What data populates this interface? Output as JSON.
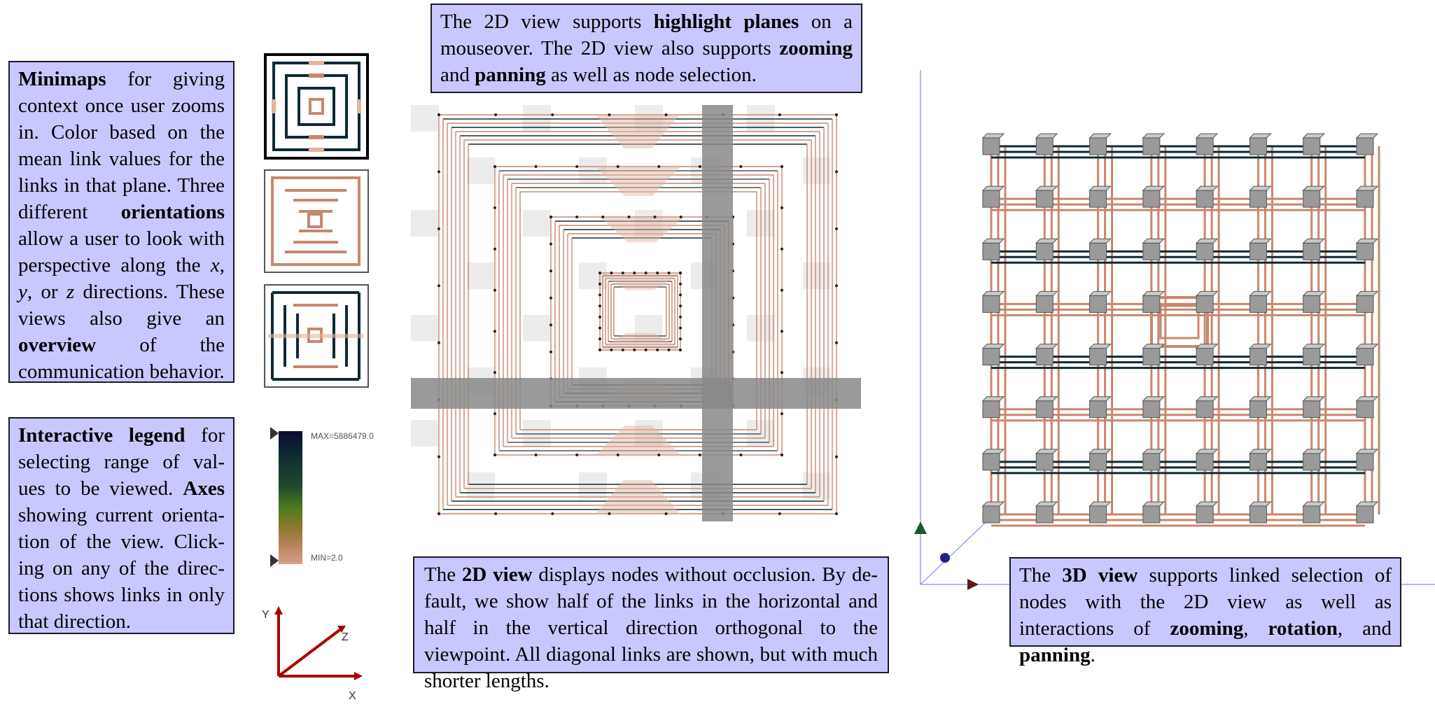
{
  "notes": {
    "minimaps": {
      "keyword": "Minimaps",
      "text_a": " for giving context once user zooms in.  Color based on the mean link values for the links in that plane. Three different ",
      "keyword2": "orientations",
      "text_b": " allow a user to look with perspective along the ",
      "x": "x",
      "comma1": ", ",
      "y": "y",
      "comma2": ", or ",
      "z": "z",
      "text_c": " directions. These views also give an ",
      "keyword3": "overview",
      "text_d": " of the communication behavior."
    },
    "legend": {
      "keyword": "Interactive legend",
      "text_a": " for selecting range of val-ues to be viewed. ",
      "keyword2": "Axes",
      "text_b": " showing current orienta-tion of the view. Click-ing on any of the direc-tions shows links in only that direction."
    },
    "view2d_top": {
      "text_a": "The 2D view supports ",
      "keyword": "highlight planes",
      "text_b": " on a mouseover.  The 2D view also supports ",
      "keyword2": "zooming",
      "text_c": " and ",
      "keyword3": "panning",
      "text_d": " as well as node selection."
    },
    "view2d_bottom": {
      "text_a": "The ",
      "keyword": "2D view",
      "text_b": " displays nodes without occlusion. By de-fault, we show half of the links in the horizontal and half in the vertical direction orthogonal to the viewpoint. All diagonal links are shown, but with much shorter lengths."
    },
    "view3d": {
      "text_a": "The ",
      "keyword": "3D view",
      "text_b": " supports linked selection of nodes with the 2D view as well as interactions of ",
      "keyword2": "zooming",
      "sep1": ", ",
      "keyword3": "rotation",
      "sep2": ", and ",
      "keyword4": "panning",
      "end": "."
    }
  },
  "legend": {
    "max_label": "MAX=5886479.0",
    "min_label": "MIN=2.0",
    "gradient_colors": [
      "#0b0b2e",
      "#0f2a33",
      "#1f4a2c",
      "#4f7a20",
      "#8a7a2a",
      "#b9825c",
      "#d59f8a"
    ]
  },
  "axes": {
    "y": "Y",
    "z": "Z",
    "x": "X",
    "color": "#aa0000"
  },
  "colors": {
    "note_bg": "#c8c8ff",
    "link_salmon": "#c8876e",
    "link_dark": "#0d2a35",
    "highlight_plane": "#888888",
    "node_gray": "#9a9a9a"
  },
  "minimap_icons": [
    "minimap-x-icon",
    "minimap-y-icon",
    "minimap-z-icon"
  ]
}
